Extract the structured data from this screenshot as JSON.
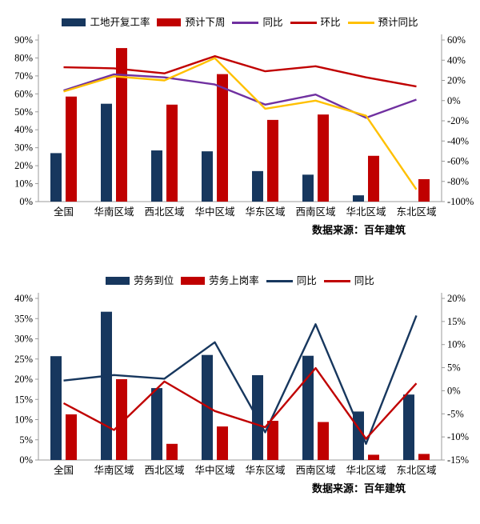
{
  "source_note": "数据来源：百年建筑",
  "chart_data": [
    {
      "type": "bar",
      "subtype": "combo-bar-line",
      "title": "",
      "categories": [
        "全国",
        "华南区域",
        "西北区域",
        "华中区域",
        "华东区域",
        "西南区域",
        "华北区域",
        "东北区域"
      ],
      "bar_series": [
        {
          "name": "工地开复工率",
          "color": "#17375E",
          "axis": "left",
          "values": [
            27,
            54.5,
            28.5,
            28,
            17,
            15,
            3.5,
            0
          ]
        },
        {
          "name": "预计下周",
          "color": "#C00000",
          "axis": "left",
          "values": [
            58.5,
            85.5,
            54,
            71,
            45.5,
            48.5,
            25.5,
            12.5
          ]
        }
      ],
      "line_series": [
        {
          "name": "同比",
          "color": "#7030A0",
          "axis": "right",
          "values": [
            10,
            26,
            23,
            16,
            -4,
            6,
            -17,
            1
          ]
        },
        {
          "name": "环比",
          "color": "#C00000",
          "axis": "right",
          "values": [
            33,
            32,
            27,
            44,
            29,
            34,
            23,
            14
          ]
        },
        {
          "name": "预计同比",
          "color": "#FFC000",
          "axis": "right",
          "values": [
            9,
            24,
            20,
            42,
            -8,
            0,
            -15,
            -88
          ]
        }
      ],
      "left_axis": {
        "min": 0,
        "max": 90,
        "step": 10,
        "suffix": "%"
      },
      "right_axis": {
        "min": -100,
        "max": 60,
        "step": 20,
        "suffix": "%"
      },
      "legend_position": "top",
      "grid": false,
      "source": "数据来源：百年建筑"
    },
    {
      "type": "bar",
      "subtype": "combo-bar-line",
      "title": "",
      "categories": [
        "全国",
        "华南区域",
        "西北区域",
        "华中区域",
        "华东区域",
        "西南区域",
        "华北区域",
        "东北区域"
      ],
      "bar_series": [
        {
          "name": "劳务到位",
          "color": "#17375E",
          "axis": "left",
          "values": [
            25.7,
            36.7,
            17.8,
            26,
            21,
            25.8,
            12,
            16.2
          ]
        },
        {
          "name": "劳务上岗率",
          "color": "#C00000",
          "axis": "left",
          "values": [
            11.3,
            20,
            4,
            8.3,
            9.7,
            9.4,
            1.3,
            1.5
          ]
        }
      ],
      "line_series": [
        {
          "name": "同比",
          "color": "#17375E",
          "axis": "right",
          "values": [
            2.2,
            3.4,
            2.6,
            10.5,
            -9,
            14.4,
            -11.5,
            16.3
          ]
        },
        {
          "name": "同比",
          "color": "#C00000",
          "axis": "right",
          "values": [
            -2.7,
            -8.5,
            2,
            -4.4,
            -7.9,
            4.9,
            -10.4,
            1.6
          ]
        }
      ],
      "left_axis": {
        "min": 0,
        "max": 40,
        "step": 5,
        "suffix": "%"
      },
      "right_axis": {
        "min": -15,
        "max": 20,
        "step": 5,
        "suffix": "%"
      },
      "legend_position": "top",
      "grid": false,
      "source": "数据来源：百年建筑"
    }
  ]
}
